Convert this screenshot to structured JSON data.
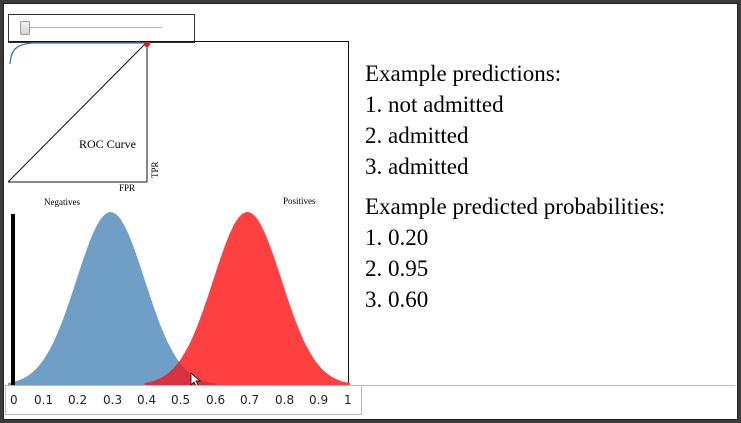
{
  "slider": {
    "value": 0.05
  },
  "roc": {
    "title": "ROC Curve",
    "xlabel": "FPR",
    "ylabel": "TPR"
  },
  "distributions": {
    "left_label": "Negatives",
    "right_label": "Positives",
    "negative_color": "#6f9fc6",
    "positive_color": "#ff4040",
    "overlap_color": "#d8313f",
    "threshold": 0.0
  },
  "axis": {
    "ticks": [
      "0",
      "0.1",
      "0.2",
      "0.3",
      "0.4",
      "0.5",
      "0.6",
      "0.7",
      "0.8",
      "0.9",
      "1"
    ]
  },
  "panel": {
    "predictions_title": "Example predictions:",
    "predictions": [
      "1. not admitted",
      "2. admitted",
      "3. admitted"
    ],
    "probabilities_title": "Example predicted probabilities:",
    "probabilities": [
      "1. 0.20",
      "2. 0.95",
      "3. 0.60"
    ]
  }
}
